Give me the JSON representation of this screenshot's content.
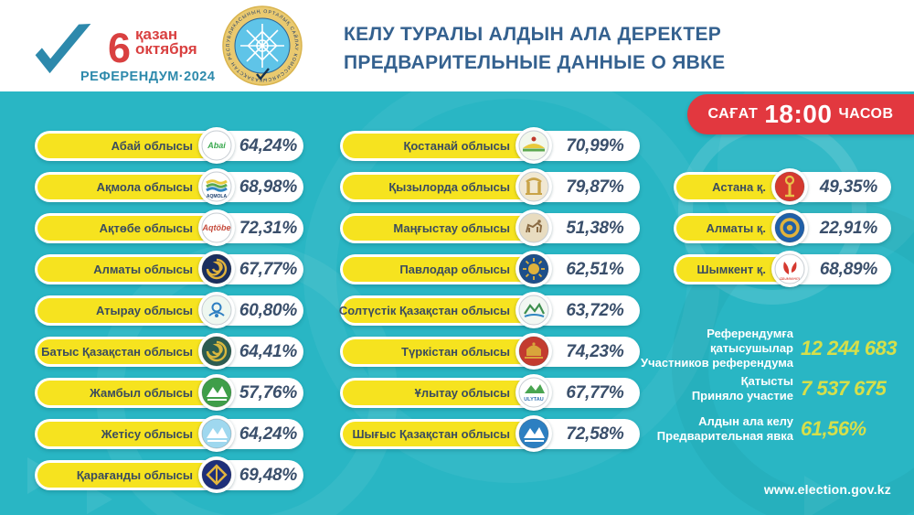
{
  "header": {
    "logo": {
      "day": "6",
      "month_kk": "қазан",
      "month_ru": "октября",
      "event": "РЕФЕРЕНДУМ·2024",
      "check_icon_color": "#2d89ac",
      "red": "#d94040"
    },
    "emblem": {
      "text": "ҚАЗАҚСТАН РЕСПУБЛИКАСЫНЫҢ ОРТАЛЫҚ САЙЛАУ КОМИССИЯСЫ · ",
      "ring_color": "#e9c96f",
      "center_color": "#5fc4e8"
    },
    "title_line1": "КЕЛУ ТУРАЛЫ АЛДЫН АЛА ДЕРЕКТЕР",
    "title_line2": "ПРЕДВАРИТЕЛЬНЫЕ ДАННЫЕ О ЯВКЕ"
  },
  "time_badge": {
    "prefix": "САҒАТ",
    "time": "18:00",
    "suffix": "ЧАСОВ"
  },
  "columns": {
    "left": [
      {
        "name": "Абай облысы",
        "value": "64,24%",
        "logo": {
          "kind": "script",
          "bg": "#ffffff",
          "fg": "#3aa94f",
          "text": "Abai"
        }
      },
      {
        "name": "Ақмола облысы",
        "value": "68,98%",
        "logo": {
          "kind": "waves",
          "bg": "#ffffff",
          "fg": "#1b3f6e",
          "text": "AQMOLA"
        }
      },
      {
        "name": "Ақтөбе облысы",
        "value": "72,31%",
        "logo": {
          "kind": "script",
          "bg": "#ffffff",
          "fg": "#c54b3c",
          "text": "Aqtöbe"
        }
      },
      {
        "name": "Алматы облысы",
        "value": "67,77%",
        "logo": {
          "kind": "swirl",
          "bg": "#1b2f5e",
          "fg": "#e0b23c"
        }
      },
      {
        "name": "Атырау  облысы",
        "value": "60,80%",
        "logo": {
          "kind": "ornament",
          "bg": "#eef7f0",
          "fg": "#2e7fc2"
        }
      },
      {
        "name": "Батыс Қазақстан облысы",
        "value": "64,41%",
        "logo": {
          "kind": "swirl",
          "bg": "#2c5c50",
          "fg": "#d8b83f"
        }
      },
      {
        "name": "Жамбыл облысы",
        "value": "57,76%",
        "logo": {
          "kind": "mountain",
          "bg": "#3f9e49",
          "fg": "#ffffff"
        }
      },
      {
        "name": "Жетісу облысы",
        "value": "64,24%",
        "logo": {
          "kind": "mountain",
          "bg": "#9fd8ef",
          "fg": "#ffffff"
        }
      },
      {
        "name": "Қарағанды облысы",
        "value": "69,48%",
        "logo": {
          "kind": "diamond",
          "bg": "#1e2f7a",
          "fg": "#e3b53d"
        }
      }
    ],
    "middle": [
      {
        "name": "Қостанай облысы",
        "value": "70,99%",
        "logo": {
          "kind": "hill",
          "bg": "#f2f8ec",
          "fg": "#e8c93c"
        }
      },
      {
        "name": "Қызылорда облысы",
        "value": "79,87%",
        "logo": {
          "kind": "gate",
          "bg": "#f1e8d2",
          "fg": "#c9a348"
        }
      },
      {
        "name": "Маңғыстау облысы",
        "value": "51,38%",
        "logo": {
          "kind": "animal",
          "bg": "#e8dcc0",
          "fg": "#8a6b43"
        }
      },
      {
        "name": "Павлодар облысы",
        "value": "62,51%",
        "logo": {
          "kind": "sun",
          "bg": "#1d4f8a",
          "fg": "#e0b23c"
        }
      },
      {
        "name": "Солтүстік Қазақстан облысы",
        "value": "63,72%",
        "logo": {
          "kind": "sketch",
          "bg": "#f2f7f2",
          "fg": "#3e8f4e"
        }
      },
      {
        "name": "Түркістан облысы",
        "value": "74,23%",
        "logo": {
          "kind": "dome",
          "bg": "#c33b2f",
          "fg": "#d9a43b"
        }
      },
      {
        "name": "Ұлытау облысы",
        "value": "67,77%",
        "logo": {
          "kind": "mountain-label",
          "bg": "#ffffff",
          "fg": "#4aa551",
          "text": "ULYTAU"
        }
      },
      {
        "name": "Шығыс Қазақстан облысы",
        "value": "72,58%",
        "logo": {
          "kind": "mountain",
          "bg": "#2d7fc1",
          "fg": "#ffffff"
        }
      }
    ],
    "cities": [
      {
        "name": "Астана  қ.",
        "value": "49,35%",
        "logo": {
          "kind": "tower",
          "bg": "#d5392f",
          "fg": "#e8c24a"
        }
      },
      {
        "name": "Алматы  қ.",
        "value": "22,91%",
        "logo": {
          "kind": "ring",
          "bg": "#1f5fa8",
          "fg": "#e0b23c"
        }
      },
      {
        "name": "Шымкент қ.",
        "value": "68,89%",
        "logo": {
          "kind": "bird",
          "bg": "#ffffff",
          "fg": "#d5392f",
          "text": "Шымкент"
        }
      }
    ]
  },
  "stats": [
    {
      "label_kk": "Референдумға қатысушылар",
      "label_ru": "Участников референдума",
      "value": "12 244 683"
    },
    {
      "label_kk": "Қатысты",
      "label_ru": "Приняло участие",
      "value": "7 537 675"
    },
    {
      "label_kk": "Алдын ала келу",
      "label_ru": "Предварительная явка",
      "value": "61,56%"
    }
  ],
  "footer": {
    "url": "www.election.gov.kz"
  },
  "colors": {
    "background_teal": "#29b6c4",
    "pill_yellow": "#f6e31f",
    "badge_red": "#e2383f",
    "title_blue": "#34618f",
    "region_text": "#3b4c5e",
    "percent_text": "#3a4f6b",
    "stat_number_green": "#d6df4a"
  }
}
